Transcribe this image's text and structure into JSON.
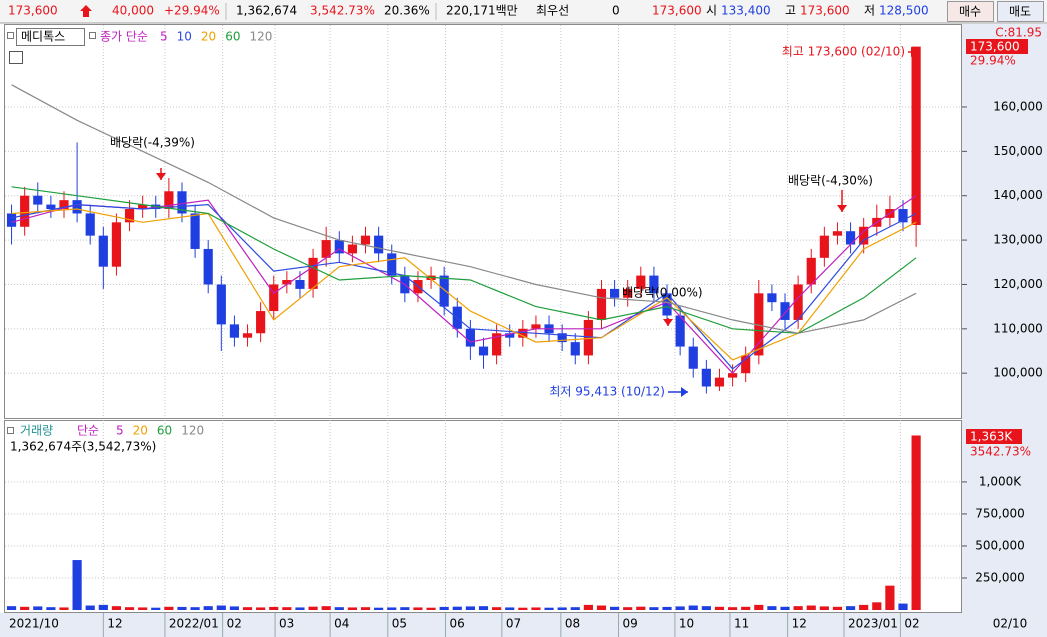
{
  "header": {
    "price": "173,600",
    "change": "40,000",
    "change_rate": "+29.94%",
    "volume": "1,362,674",
    "volume_rate": "3,542.73%",
    "turnover": "20.36%",
    "amount": "220,171백만",
    "best_label": "최우선",
    "best_value": "0",
    "best_price": "173,600",
    "open_label": "시",
    "open": "133,400",
    "high_label": "고",
    "high": "173,600",
    "low_label": "저",
    "low": "128,500",
    "buy": "매수",
    "sell": "매도"
  },
  "chart_data": [
    {
      "type": "candlestick",
      "title": "메디톡스",
      "legend_label": "종가 단순",
      "x": [
        0,
        1,
        2,
        3,
        4,
        5,
        6,
        7,
        8,
        9,
        10,
        11,
        12,
        13,
        14,
        15,
        16,
        17,
        18,
        19,
        20,
        21,
        22,
        23,
        24,
        25,
        26,
        27,
        28,
        29,
        30,
        31,
        32,
        33,
        34,
        35,
        36,
        37,
        38,
        39,
        40,
        41,
        42,
        43,
        44,
        45,
        46,
        47,
        48,
        49,
        50,
        51,
        52,
        53,
        54,
        55,
        56,
        57,
        58,
        59,
        60,
        61,
        62,
        63,
        64,
        65,
        66,
        67,
        68,
        69
      ],
      "open": [
        136000,
        133000,
        140000,
        138000,
        137000,
        139000,
        136000,
        131000,
        124000,
        134000,
        137000,
        138000,
        137000,
        141000,
        136000,
        128000,
        120000,
        111000,
        108000,
        109000,
        114000,
        120000,
        121000,
        119000,
        126000,
        130000,
        127000,
        129000,
        131000,
        127000,
        122000,
        118000,
        121000,
        122000,
        115000,
        110000,
        106000,
        104000,
        109000,
        108000,
        110000,
        111000,
        109000,
        107000,
        104000,
        112000,
        119000,
        117000,
        119000,
        122000,
        118000,
        113000,
        106000,
        101000,
        97000,
        99000,
        100000,
        104000,
        118000,
        116000,
        112000,
        120000,
        126000,
        131000,
        132000,
        129000,
        133000,
        135000,
        137000,
        133400
      ],
      "high": [
        138000,
        142000,
        143000,
        140000,
        141000,
        152000,
        138000,
        133000,
        136000,
        139000,
        140000,
        140000,
        144000,
        143000,
        138000,
        130000,
        122000,
        113000,
        111000,
        116000,
        122000,
        123000,
        123000,
        128000,
        133000,
        132000,
        131000,
        133000,
        133000,
        129000,
        124000,
        123000,
        124000,
        124000,
        117000,
        112000,
        108000,
        111000,
        111000,
        112000,
        113000,
        113000,
        111000,
        109000,
        114000,
        121000,
        121000,
        121000,
        124000,
        124000,
        120000,
        115000,
        108000,
        103000,
        101000,
        102000,
        106000,
        121000,
        120000,
        118000,
        122000,
        128000,
        133000,
        134000,
        134000,
        135000,
        138000,
        140000,
        139000,
        173600
      ],
      "low": [
        129000,
        131000,
        136000,
        135000,
        135000,
        134000,
        129000,
        119000,
        122000,
        132000,
        135000,
        135000,
        135000,
        134000,
        126000,
        118000,
        105000,
        106000,
        106000,
        107000,
        112000,
        118000,
        117000,
        117000,
        124000,
        125000,
        125000,
        127000,
        125000,
        120000,
        116000,
        116000,
        119000,
        113000,
        108000,
        103000,
        101000,
        102000,
        106000,
        106000,
        108000,
        107000,
        105000,
        102000,
        102000,
        110000,
        115000,
        115000,
        117000,
        116000,
        111000,
        104000,
        99000,
        95413,
        96000,
        97000,
        98000,
        102000,
        114000,
        110000,
        110000,
        118000,
        124000,
        129000,
        127000,
        127000,
        131000,
        133000,
        132000,
        128500
      ],
      "close": [
        133000,
        140000,
        138000,
        137000,
        139000,
        136000,
        131000,
        124000,
        134000,
        137000,
        138000,
        137000,
        141000,
        136000,
        128000,
        120000,
        111000,
        108000,
        109000,
        114000,
        120000,
        121000,
        119000,
        126000,
        130000,
        127000,
        129000,
        131000,
        127000,
        122000,
        118000,
        121000,
        122000,
        115000,
        110000,
        106000,
        104000,
        109000,
        108000,
        110000,
        111000,
        109000,
        107000,
        104000,
        112000,
        119000,
        117000,
        119000,
        122000,
        118000,
        113000,
        106000,
        101000,
        97000,
        99000,
        100000,
        104000,
        118000,
        116000,
        112000,
        120000,
        126000,
        131000,
        132000,
        129000,
        133000,
        135000,
        137000,
        134000,
        173600
      ],
      "up_color": "#e8141c",
      "down_color": "#1f3fe0",
      "series": [
        {
          "name": "5",
          "color": "#c020c0",
          "x": [
            0,
            5,
            10,
            15,
            20,
            25,
            30,
            35,
            40,
            45,
            50,
            55,
            60,
            65,
            69
          ],
          "values": [
            134000,
            138000,
            137000,
            139000,
            118000,
            128000,
            120000,
            107000,
            110000,
            110000,
            116000,
            100000,
            117000,
            132000,
            140000
          ]
        },
        {
          "name": "10",
          "color": "#2e4be0",
          "x": [
            0,
            5,
            10,
            15,
            20,
            25,
            30,
            35,
            40,
            45,
            50,
            55,
            60,
            65,
            69
          ],
          "values": [
            135000,
            138000,
            137000,
            138000,
            123000,
            125000,
            122000,
            110000,
            109000,
            108000,
            118000,
            101000,
            112000,
            130000,
            136000
          ]
        },
        {
          "name": "20",
          "color": "#f0a000",
          "x": [
            0,
            5,
            10,
            15,
            20,
            25,
            30,
            35,
            40,
            45,
            50,
            55,
            60,
            65,
            69
          ],
          "values": [
            136000,
            137000,
            134000,
            136000,
            112000,
            124000,
            126000,
            114000,
            107000,
            108000,
            117000,
            103000,
            109000,
            128000,
            134000
          ]
        },
        {
          "name": "60",
          "color": "#1f9e3c",
          "x": [
            0,
            5,
            10,
            15,
            20,
            25,
            30,
            35,
            40,
            45,
            50,
            55,
            60,
            65,
            69
          ],
          "values": [
            142000,
            140000,
            138000,
            136000,
            128000,
            121000,
            122000,
            121000,
            115000,
            112000,
            115000,
            110000,
            109000,
            117000,
            126000
          ]
        },
        {
          "name": "120",
          "color": "#888888",
          "x": [
            0,
            5,
            10,
            15,
            20,
            25,
            30,
            35,
            40,
            45,
            50,
            55,
            60,
            65,
            69
          ],
          "values": [
            165000,
            157000,
            150000,
            143000,
            135000,
            130000,
            127000,
            124000,
            120000,
            117000,
            116000,
            112000,
            109000,
            112000,
            118000
          ]
        }
      ],
      "xlim": [
        0,
        73
      ],
      "ylim": [
        89900,
        177800
      ],
      "yticks": [
        {
          "value": 100000,
          "label": "100,000"
        },
        {
          "value": 110000,
          "label": "110,000"
        },
        {
          "value": 120000,
          "label": "120,000"
        },
        {
          "value": 130000,
          "label": "130,000"
        },
        {
          "value": 140000,
          "label": "140,000"
        },
        {
          "value": 150000,
          "label": "150,000"
        },
        {
          "value": 160000,
          "label": "160,000"
        }
      ],
      "annotations": [
        "배당락(-4,39%)",
        "배당락(-4,30%)",
        "배당락(0,00%)",
        "최고 173,600 (02/10)",
        "최저 95,413 (10/12)"
      ],
      "extra_label": "C:81.95",
      "last_price_label": "173,600",
      "change_label": "29.94%"
    },
    {
      "type": "bar",
      "title": "거래량",
      "legend_label": "단순",
      "subtitle": "1,362,674주(3,542,73%)",
      "ma_legend": [
        {
          "name": "5",
          "color": "#c020c0"
        },
        {
          "name": "20",
          "color": "#f0a000"
        },
        {
          "name": "60",
          "color": "#1f9e3c"
        },
        {
          "name": "120",
          "color": "#888888"
        }
      ],
      "values": [
        30000,
        25000,
        28000,
        22000,
        20000,
        390000,
        35000,
        40000,
        30000,
        22000,
        20000,
        18000,
        25000,
        24000,
        22000,
        30000,
        35000,
        28000,
        22000,
        20000,
        24000,
        22000,
        20000,
        26000,
        30000,
        22000,
        20000,
        22000,
        18000,
        20000,
        22000,
        20000,
        18000,
        24000,
        26000,
        28000,
        30000,
        22000,
        20000,
        18000,
        20000,
        18000,
        20000,
        22000,
        40000,
        35000,
        25000,
        22000,
        26000,
        22000,
        24000,
        28000,
        35000,
        30000,
        25000,
        22000,
        25000,
        40000,
        30000,
        25000,
        30000,
        35000,
        28000,
        25000,
        30000,
        40000,
        60000,
        190000,
        50000,
        1362674
      ],
      "xlim": [
        0,
        73
      ],
      "ylim": [
        0,
        1460000
      ],
      "yticks": [
        {
          "value": 250000,
          "label": "250,000"
        },
        {
          "value": 500000,
          "label": "500,000"
        },
        {
          "value": 750000,
          "label": "750,000"
        },
        {
          "value": 1000000,
          "label": "1,000K"
        }
      ],
      "xticks": [
        {
          "value": 0,
          "label": "2021/10"
        },
        {
          "value": 7.5,
          "label": "12"
        },
        {
          "value": 12.2,
          "label": "2022/01"
        },
        {
          "value": 16.6,
          "label": "02"
        },
        {
          "value": 20.6,
          "label": "03"
        },
        {
          "value": 24.8,
          "label": "04"
        },
        {
          "value": 29.2,
          "label": "05"
        },
        {
          "value": 33.6,
          "label": "06"
        },
        {
          "value": 37.9,
          "label": "07"
        },
        {
          "value": 42.4,
          "label": "08"
        },
        {
          "value": 46.8,
          "label": "09"
        },
        {
          "value": 51.1,
          "label": "10"
        },
        {
          "value": 55.3,
          "label": "11"
        },
        {
          "value": 59.7,
          "label": "12"
        },
        {
          "value": 64,
          "label": "2023/01"
        },
        {
          "value": 68.3,
          "label": "02"
        }
      ],
      "last_value_label": "1,363K",
      "change_label": "3542.73%",
      "last_date": "02/10"
    }
  ]
}
